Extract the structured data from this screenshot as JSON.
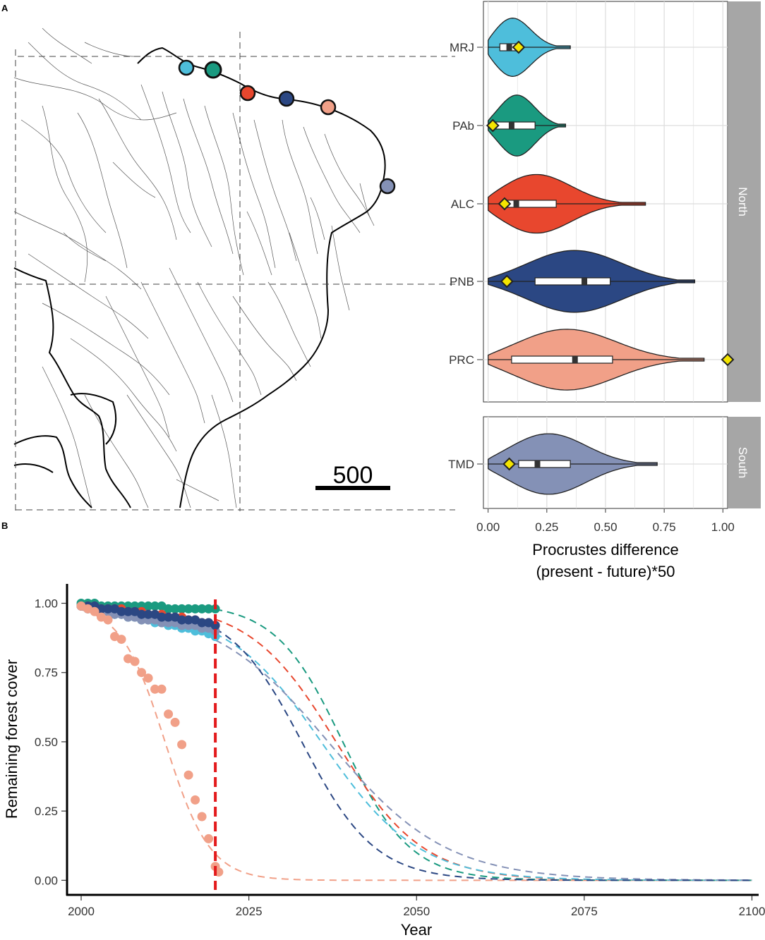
{
  "panels": {
    "a_label": "A",
    "b_label": "B"
  },
  "map": {
    "scale_bar_label": "500",
    "sites": [
      {
        "code": "MRJ",
        "color": "#4ebedb"
      },
      {
        "code": "PAb",
        "color": "#1a9a80"
      },
      {
        "code": "ALC",
        "color": "#e8472e"
      },
      {
        "code": "PNB",
        "color": "#2b4783"
      },
      {
        "code": "PRC",
        "color": "#f1a088"
      },
      {
        "code": "TMD",
        "color": "#8491b6"
      }
    ]
  },
  "chart_data": [
    {
      "type": "violin",
      "xlabel_line1": "Procrustes difference",
      "xlabel_line2": "(present - future)*50",
      "xlim": [
        -0.02,
        1.02
      ],
      "xticks": [
        "0.00",
        "0.25",
        "0.50",
        "0.75",
        "1.00"
      ],
      "xtick_values": [
        0,
        0.25,
        0.5,
        0.75,
        1.0
      ],
      "facets": [
        {
          "label": "North",
          "groups": [
            "MRJ",
            "PAb",
            "ALC",
            "PNB",
            "PRC"
          ]
        },
        {
          "label": "South",
          "groups": [
            "TMD"
          ]
        }
      ],
      "series": [
        {
          "name": "MRJ",
          "color": "#4ebedb",
          "range": [
            0.0,
            0.35
          ],
          "q1": 0.05,
          "median": 0.09,
          "q3": 0.13,
          "observed": 0.13
        },
        {
          "name": "PAb",
          "color": "#1a9a80",
          "range": [
            0.0,
            0.33
          ],
          "q1": 0.03,
          "median": 0.1,
          "q3": 0.2,
          "observed": 0.02
        },
        {
          "name": "ALC",
          "color": "#e8472e",
          "range": [
            0.0,
            0.67
          ],
          "q1": 0.07,
          "median": 0.12,
          "q3": 0.29,
          "observed": 0.07
        },
        {
          "name": "PNB",
          "color": "#2b4783",
          "range": [
            0.0,
            0.88
          ],
          "q1": 0.2,
          "median": 0.41,
          "q3": 0.52,
          "observed": 0.08
        },
        {
          "name": "PRC",
          "color": "#f1a088",
          "range": [
            0.0,
            0.92
          ],
          "q1": 0.1,
          "median": 0.37,
          "q3": 0.53,
          "observed": 1.02
        },
        {
          "name": "TMD",
          "color": "#8491b6",
          "range": [
            0.0,
            0.72
          ],
          "q1": 0.13,
          "median": 0.21,
          "q3": 0.35,
          "observed": 0.09
        }
      ]
    },
    {
      "type": "scatter",
      "xlabel": "Year",
      "ylabel": "Remaining forest cover",
      "xlim": [
        1998,
        2101
      ],
      "ylim": [
        -0.05,
        1.07
      ],
      "xticks": [
        "2000",
        "2025",
        "2050",
        "2075",
        "2100"
      ],
      "xtick_values": [
        2000,
        2025,
        2050,
        2075,
        2100
      ],
      "yticks": [
        "0.00",
        "0.25",
        "0.50",
        "0.75",
        "1.00"
      ],
      "ytick_values": [
        0,
        0.25,
        0.5,
        0.75,
        1.0
      ],
      "vline": {
        "x": 2020,
        "color": "#e31a1c"
      },
      "observed_end_year": 2020,
      "projection_end_year": 2100,
      "series": [
        {
          "name": "PRC",
          "color": "#f1a088",
          "logistic": {
            "k": 0.3,
            "midpoint": 2012.5,
            "top": 1.0
          },
          "observed": [
            [
              2000,
              0.99
            ],
            [
              2001,
              0.98
            ],
            [
              2002,
              0.97
            ],
            [
              2003,
              0.95
            ],
            [
              2004,
              0.94
            ],
            [
              2005,
              0.88
            ],
            [
              2006,
              0.87
            ],
            [
              2007,
              0.8
            ],
            [
              2008,
              0.79
            ],
            [
              2009,
              0.75
            ],
            [
              2010,
              0.73
            ],
            [
              2011,
              0.69
            ],
            [
              2012,
              0.69
            ],
            [
              2013,
              0.6
            ],
            [
              2014,
              0.57
            ],
            [
              2015,
              0.49
            ],
            [
              2016,
              0.38
            ],
            [
              2017,
              0.29
            ],
            [
              2018,
              0.23
            ],
            [
              2019,
              0.15
            ],
            [
              2020,
              0.05
            ],
            [
              2020.5,
              0.03
            ]
          ]
        },
        {
          "name": "PAb",
          "color": "#1a9a80",
          "logistic": {
            "k": 0.2,
            "midpoint": 2039,
            "top": 1.0
          },
          "observed": [
            [
              2000,
              1.0
            ],
            [
              2001,
              1.0
            ],
            [
              2002,
              1.0
            ],
            [
              2003,
              0.99
            ],
            [
              2004,
              0.99
            ],
            [
              2005,
              0.99
            ],
            [
              2006,
              0.99
            ],
            [
              2007,
              0.99
            ],
            [
              2008,
              0.99
            ],
            [
              2009,
              0.99
            ],
            [
              2010,
              0.99
            ],
            [
              2011,
              0.99
            ],
            [
              2012,
              0.99
            ],
            [
              2013,
              0.98
            ],
            [
              2014,
              0.98
            ],
            [
              2015,
              0.98
            ],
            [
              2016,
              0.98
            ],
            [
              2017,
              0.98
            ],
            [
              2018,
              0.98
            ],
            [
              2019,
              0.98
            ],
            [
              2020,
              0.98
            ]
          ]
        },
        {
          "name": "ALC",
          "color": "#e8472e",
          "logistic": {
            "k": 0.155,
            "midpoint": 2038,
            "top": 1.0
          },
          "observed": [
            [
              2000,
              0.99
            ],
            [
              2001,
              0.99
            ],
            [
              2002,
              0.99
            ],
            [
              2003,
              0.98
            ],
            [
              2004,
              0.98
            ],
            [
              2005,
              0.98
            ],
            [
              2006,
              0.98
            ],
            [
              2007,
              0.97
            ],
            [
              2008,
              0.97
            ],
            [
              2009,
              0.97
            ],
            [
              2010,
              0.96
            ],
            [
              2011,
              0.96
            ],
            [
              2012,
              0.96
            ],
            [
              2013,
              0.95
            ],
            [
              2014,
              0.95
            ],
            [
              2015,
              0.95
            ],
            [
              2016,
              0.94
            ],
            [
              2017,
              0.94
            ],
            [
              2018,
              0.93
            ],
            [
              2019,
              0.93
            ],
            [
              2020,
              0.92
            ]
          ]
        },
        {
          "name": "MRJ",
          "color": "#4ebedb",
          "logistic": {
            "k": 0.14,
            "midpoint": 2036,
            "top": 0.985
          },
          "observed": [
            [
              2000,
              0.99
            ],
            [
              2001,
              0.98
            ],
            [
              2002,
              0.98
            ],
            [
              2003,
              0.97
            ],
            [
              2004,
              0.97
            ],
            [
              2005,
              0.96
            ],
            [
              2006,
              0.96
            ],
            [
              2007,
              0.95
            ],
            [
              2008,
              0.95
            ],
            [
              2009,
              0.94
            ],
            [
              2010,
              0.94
            ],
            [
              2011,
              0.93
            ],
            [
              2012,
              0.93
            ],
            [
              2013,
              0.92
            ],
            [
              2014,
              0.92
            ],
            [
              2015,
              0.91
            ],
            [
              2016,
              0.91
            ],
            [
              2017,
              0.9
            ],
            [
              2018,
              0.9
            ],
            [
              2019,
              0.89
            ],
            [
              2020,
              0.88
            ]
          ]
        },
        {
          "name": "TMD",
          "color": "#8491b6",
          "logistic": {
            "k": 0.115,
            "midpoint": 2037,
            "top": 0.99
          },
          "observed": [
            [
              2000,
              0.99
            ],
            [
              2001,
              0.98
            ],
            [
              2002,
              0.98
            ],
            [
              2003,
              0.97
            ],
            [
              2004,
              0.97
            ],
            [
              2005,
              0.96
            ],
            [
              2006,
              0.96
            ],
            [
              2007,
              0.95
            ],
            [
              2008,
              0.95
            ],
            [
              2009,
              0.94
            ],
            [
              2010,
              0.94
            ],
            [
              2011,
              0.94
            ],
            [
              2012,
              0.93
            ],
            [
              2013,
              0.93
            ],
            [
              2014,
              0.93
            ],
            [
              2015,
              0.92
            ],
            [
              2016,
              0.92
            ],
            [
              2017,
              0.92
            ],
            [
              2018,
              0.91
            ],
            [
              2019,
              0.91
            ],
            [
              2020,
              0.9
            ]
          ]
        },
        {
          "name": "PNB",
          "color": "#2b4783",
          "logistic": {
            "k": 0.185,
            "midpoint": 2033,
            "top": 0.99
          },
          "observed": [
            [
              2000,
              0.99
            ],
            [
              2001,
              0.99
            ],
            [
              2002,
              0.99
            ],
            [
              2003,
              0.98
            ],
            [
              2004,
              0.98
            ],
            [
              2005,
              0.98
            ],
            [
              2006,
              0.97
            ],
            [
              2007,
              0.97
            ],
            [
              2008,
              0.97
            ],
            [
              2009,
              0.96
            ],
            [
              2010,
              0.96
            ],
            [
              2011,
              0.96
            ],
            [
              2012,
              0.95
            ],
            [
              2013,
              0.95
            ],
            [
              2014,
              0.95
            ],
            [
              2015,
              0.94
            ],
            [
              2016,
              0.94
            ],
            [
              2017,
              0.94
            ],
            [
              2018,
              0.93
            ],
            [
              2019,
              0.93
            ],
            [
              2020,
              0.92
            ]
          ]
        }
      ]
    }
  ]
}
